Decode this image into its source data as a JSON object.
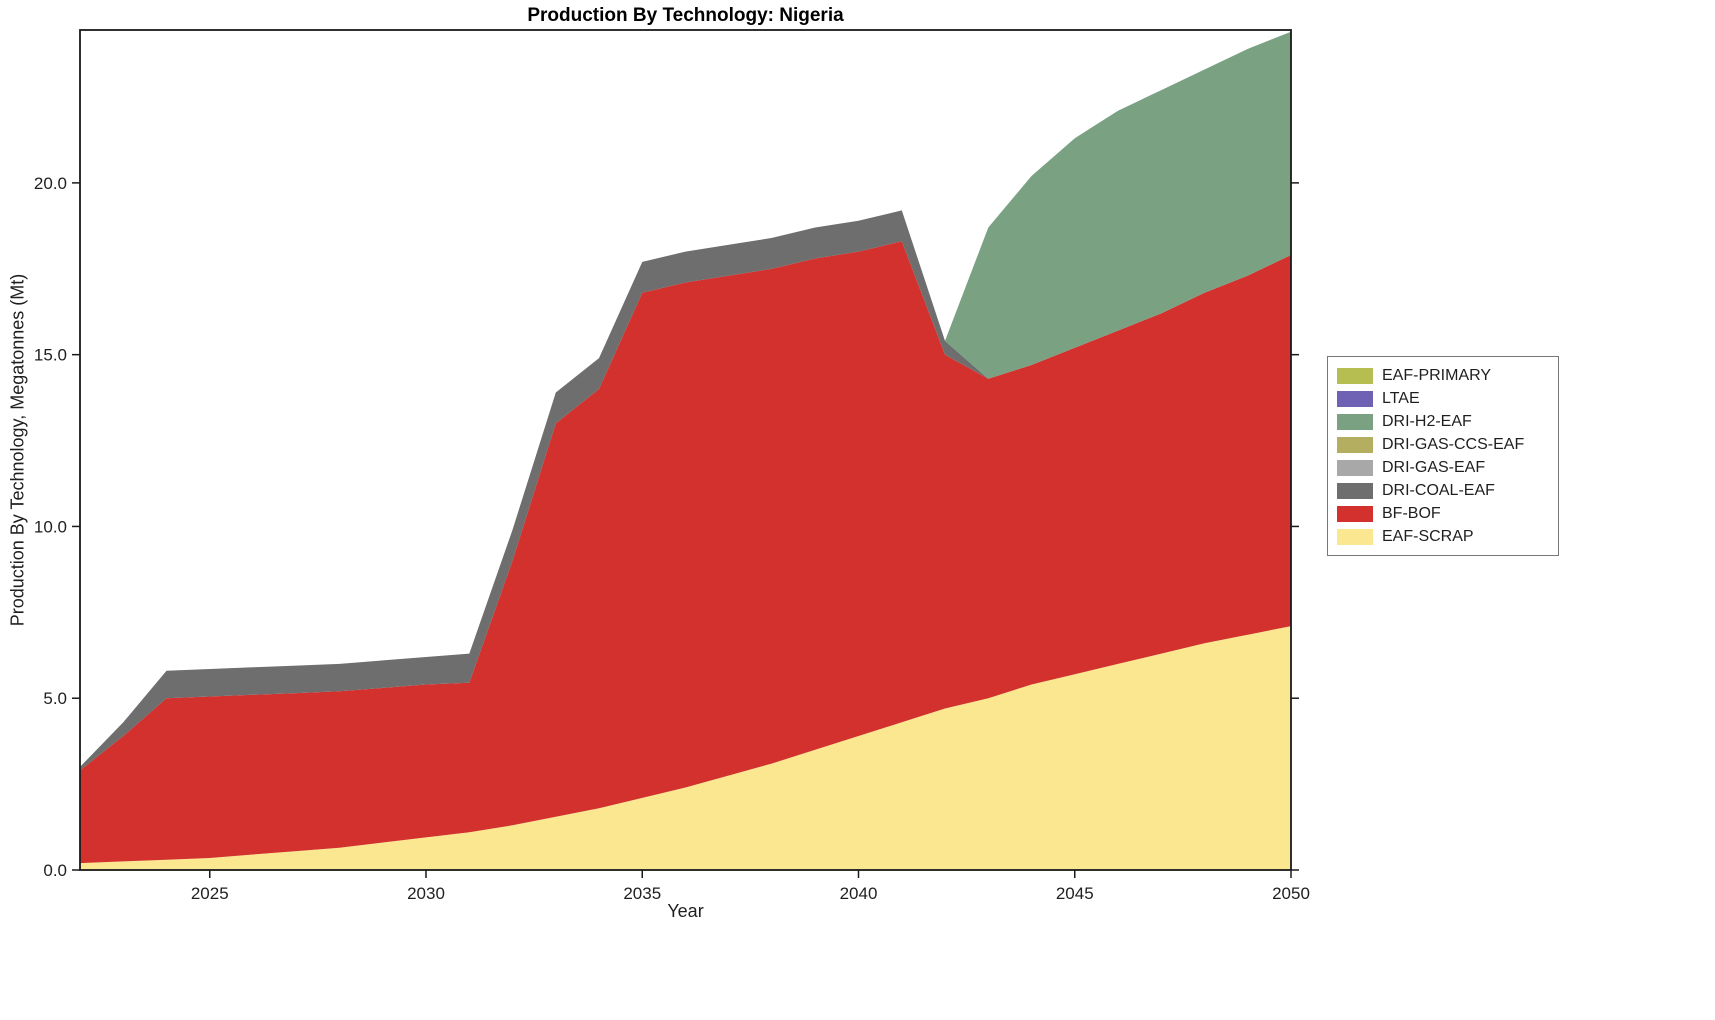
{
  "chart_data": {
    "type": "area",
    "stacked": true,
    "title": "Production By Technology: Nigeria",
    "xlabel": "Year",
    "ylabel": "Production By Technology, Megatonnes (Mt)",
    "xlim": [
      2022,
      2050
    ],
    "ylim": [
      0,
      24.45
    ],
    "grid": false,
    "legend_position": "right-outside",
    "x": [
      2022,
      2023,
      2024,
      2025,
      2026,
      2027,
      2028,
      2029,
      2030,
      2031,
      2032,
      2033,
      2034,
      2035,
      2036,
      2037,
      2038,
      2039,
      2040,
      2041,
      2042,
      2043,
      2044,
      2045,
      2046,
      2047,
      2048,
      2049,
      2050
    ],
    "xticks": [
      2025,
      2030,
      2035,
      2040,
      2045,
      2050
    ],
    "yticks": [
      {
        "v": 0,
        "label": "0.0"
      },
      {
        "v": 5,
        "label": "5.0"
      },
      {
        "v": 10,
        "label": "10.0"
      },
      {
        "v": 15,
        "label": "15.0"
      },
      {
        "v": 20,
        "label": "20.0"
      }
    ],
    "series": [
      {
        "name": "EAF-SCRAP",
        "color": "#FAE78F",
        "values": [
          0.2,
          0.25,
          0.3,
          0.35,
          0.45,
          0.55,
          0.65,
          0.8,
          0.95,
          1.1,
          1.3,
          1.55,
          1.8,
          2.1,
          2.4,
          2.75,
          3.1,
          3.5,
          3.9,
          4.3,
          4.7,
          5.0,
          5.4,
          5.7,
          6.0,
          6.3,
          6.6,
          6.85,
          7.1
        ]
      },
      {
        "name": "BF-BOF",
        "color": "#D2312D",
        "values": [
          2.7,
          3.65,
          4.7,
          4.7,
          4.65,
          4.6,
          4.55,
          4.5,
          4.45,
          4.35,
          7.7,
          11.45,
          12.2,
          14.7,
          14.7,
          14.55,
          14.4,
          14.3,
          14.1,
          14.0,
          10.3,
          9.3,
          9.3,
          9.5,
          9.7,
          9.9,
          10.2,
          10.45,
          10.8
        ]
      },
      {
        "name": "DRI-COAL-EAF",
        "color": "#6E6E6E",
        "values": [
          0.1,
          0.4,
          0.8,
          0.8,
          0.8,
          0.8,
          0.8,
          0.8,
          0.8,
          0.85,
          0.9,
          0.9,
          0.9,
          0.9,
          0.9,
          0.9,
          0.9,
          0.9,
          0.9,
          0.9,
          0.4,
          0,
          0,
          0,
          0,
          0,
          0,
          0,
          0
        ]
      },
      {
        "name": "DRI-GAS-EAF",
        "color": "#A8A8A8",
        "values": [
          0,
          0,
          0,
          0,
          0,
          0,
          0,
          0,
          0,
          0,
          0,
          0,
          0,
          0,
          0,
          0,
          0,
          0,
          0,
          0,
          0,
          0,
          0,
          0,
          0,
          0,
          0,
          0,
          0
        ]
      },
      {
        "name": "DRI-GAS-CCS-EAF",
        "color": "#B3AE60",
        "values": [
          0,
          0,
          0,
          0,
          0,
          0,
          0,
          0,
          0,
          0,
          0,
          0,
          0,
          0,
          0,
          0,
          0,
          0,
          0,
          0,
          0,
          0,
          0,
          0,
          0,
          0,
          0,
          0,
          0
        ]
      },
      {
        "name": "DRI-H2-EAF",
        "color": "#7BA183",
        "values": [
          0,
          0,
          0,
          0,
          0,
          0,
          0,
          0,
          0,
          0,
          0,
          0,
          0,
          0,
          0,
          0,
          0,
          0,
          0,
          0,
          0,
          4.4,
          5.5,
          6.1,
          6.4,
          6.5,
          6.5,
          6.6,
          6.5
        ]
      },
      {
        "name": "LTAE",
        "color": "#6F62B5",
        "values": [
          0,
          0,
          0,
          0,
          0,
          0,
          0,
          0,
          0,
          0,
          0,
          0,
          0,
          0,
          0,
          0,
          0,
          0,
          0,
          0,
          0,
          0,
          0,
          0,
          0,
          0,
          0,
          0,
          0
        ]
      },
      {
        "name": "EAF-PRIMARY",
        "color": "#B6BD51",
        "values": [
          0,
          0,
          0,
          0,
          0,
          0,
          0,
          0,
          0,
          0,
          0,
          0,
          0,
          0,
          0,
          0,
          0,
          0,
          0,
          0,
          0,
          0,
          0,
          0,
          0,
          0,
          0,
          0,
          0
        ]
      }
    ],
    "legend_order": [
      "EAF-PRIMARY",
      "LTAE",
      "DRI-H2-EAF",
      "DRI-GAS-CCS-EAF",
      "DRI-GAS-EAF",
      "DRI-COAL-EAF",
      "BF-BOF",
      "EAF-SCRAP"
    ]
  },
  "axis_color": "#1a1a1a"
}
